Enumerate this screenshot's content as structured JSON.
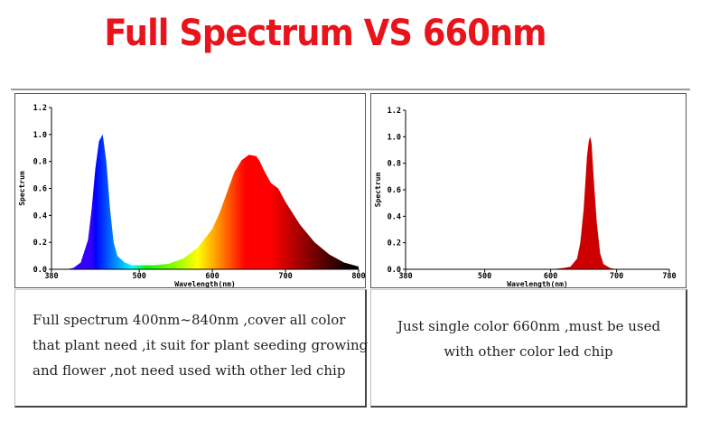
{
  "title": "Full Spectrum VS 660nm",
  "colors": {
    "title": "#e8131b",
    "red_peak": "#cc0000"
  },
  "chart_data": [
    {
      "type": "area",
      "ylabel": "Spectrum",
      "xlabel": "Wavelength(nm)",
      "xlim": [
        380,
        800
      ],
      "ylim": [
        0,
        1.2
      ],
      "x_ticks": [
        "380",
        "500",
        "600",
        "700",
        "800"
      ],
      "y_ticks": [
        "0.0",
        "0.2",
        "0.4",
        "0.6",
        "0.8",
        "1.0",
        "1.2"
      ],
      "x": [
        380,
        400,
        410,
        420,
        430,
        435,
        440,
        445,
        450,
        455,
        460,
        465,
        470,
        480,
        490,
        500,
        520,
        540,
        560,
        580,
        600,
        610,
        620,
        630,
        640,
        650,
        660,
        665,
        670,
        680,
        690,
        700,
        720,
        740,
        760,
        780,
        800
      ],
      "y": [
        0.0,
        0.0,
        0.01,
        0.05,
        0.22,
        0.45,
        0.75,
        0.95,
        1.0,
        0.8,
        0.45,
        0.2,
        0.1,
        0.05,
        0.03,
        0.03,
        0.03,
        0.04,
        0.08,
        0.16,
        0.3,
        0.42,
        0.57,
        0.72,
        0.81,
        0.85,
        0.84,
        0.8,
        0.74,
        0.64,
        0.6,
        0.5,
        0.33,
        0.2,
        0.11,
        0.05,
        0.02
      ]
    },
    {
      "type": "area",
      "ylabel": "Spectrum",
      "xlabel": "Wavelength(nm)",
      "xlim": [
        380,
        780
      ],
      "ylim": [
        0,
        1.2
      ],
      "x_ticks": [
        "380",
        "500",
        "600",
        "700",
        "780"
      ],
      "y_ticks": [
        "0.0",
        "0.2",
        "0.4",
        "0.6",
        "0.8",
        "1.0",
        "1.2"
      ],
      "x": [
        380,
        600,
        620,
        630,
        640,
        645,
        650,
        655,
        658,
        660,
        662,
        665,
        670,
        675,
        680,
        690,
        700,
        780
      ],
      "y": [
        0.0,
        0.0,
        0.01,
        0.02,
        0.08,
        0.2,
        0.45,
        0.85,
        0.97,
        1.0,
        0.95,
        0.7,
        0.35,
        0.12,
        0.04,
        0.01,
        0.0,
        0.0
      ]
    }
  ],
  "captions": {
    "left": [
      "Full spectrum 400nm~840nm ,cover all color",
      "that plant need ,it suit for plant seeding growing",
      "and flower ,not need used with other led chip"
    ],
    "right": [
      "Just single color 660nm ,must be used",
      "with other color led chip"
    ]
  }
}
